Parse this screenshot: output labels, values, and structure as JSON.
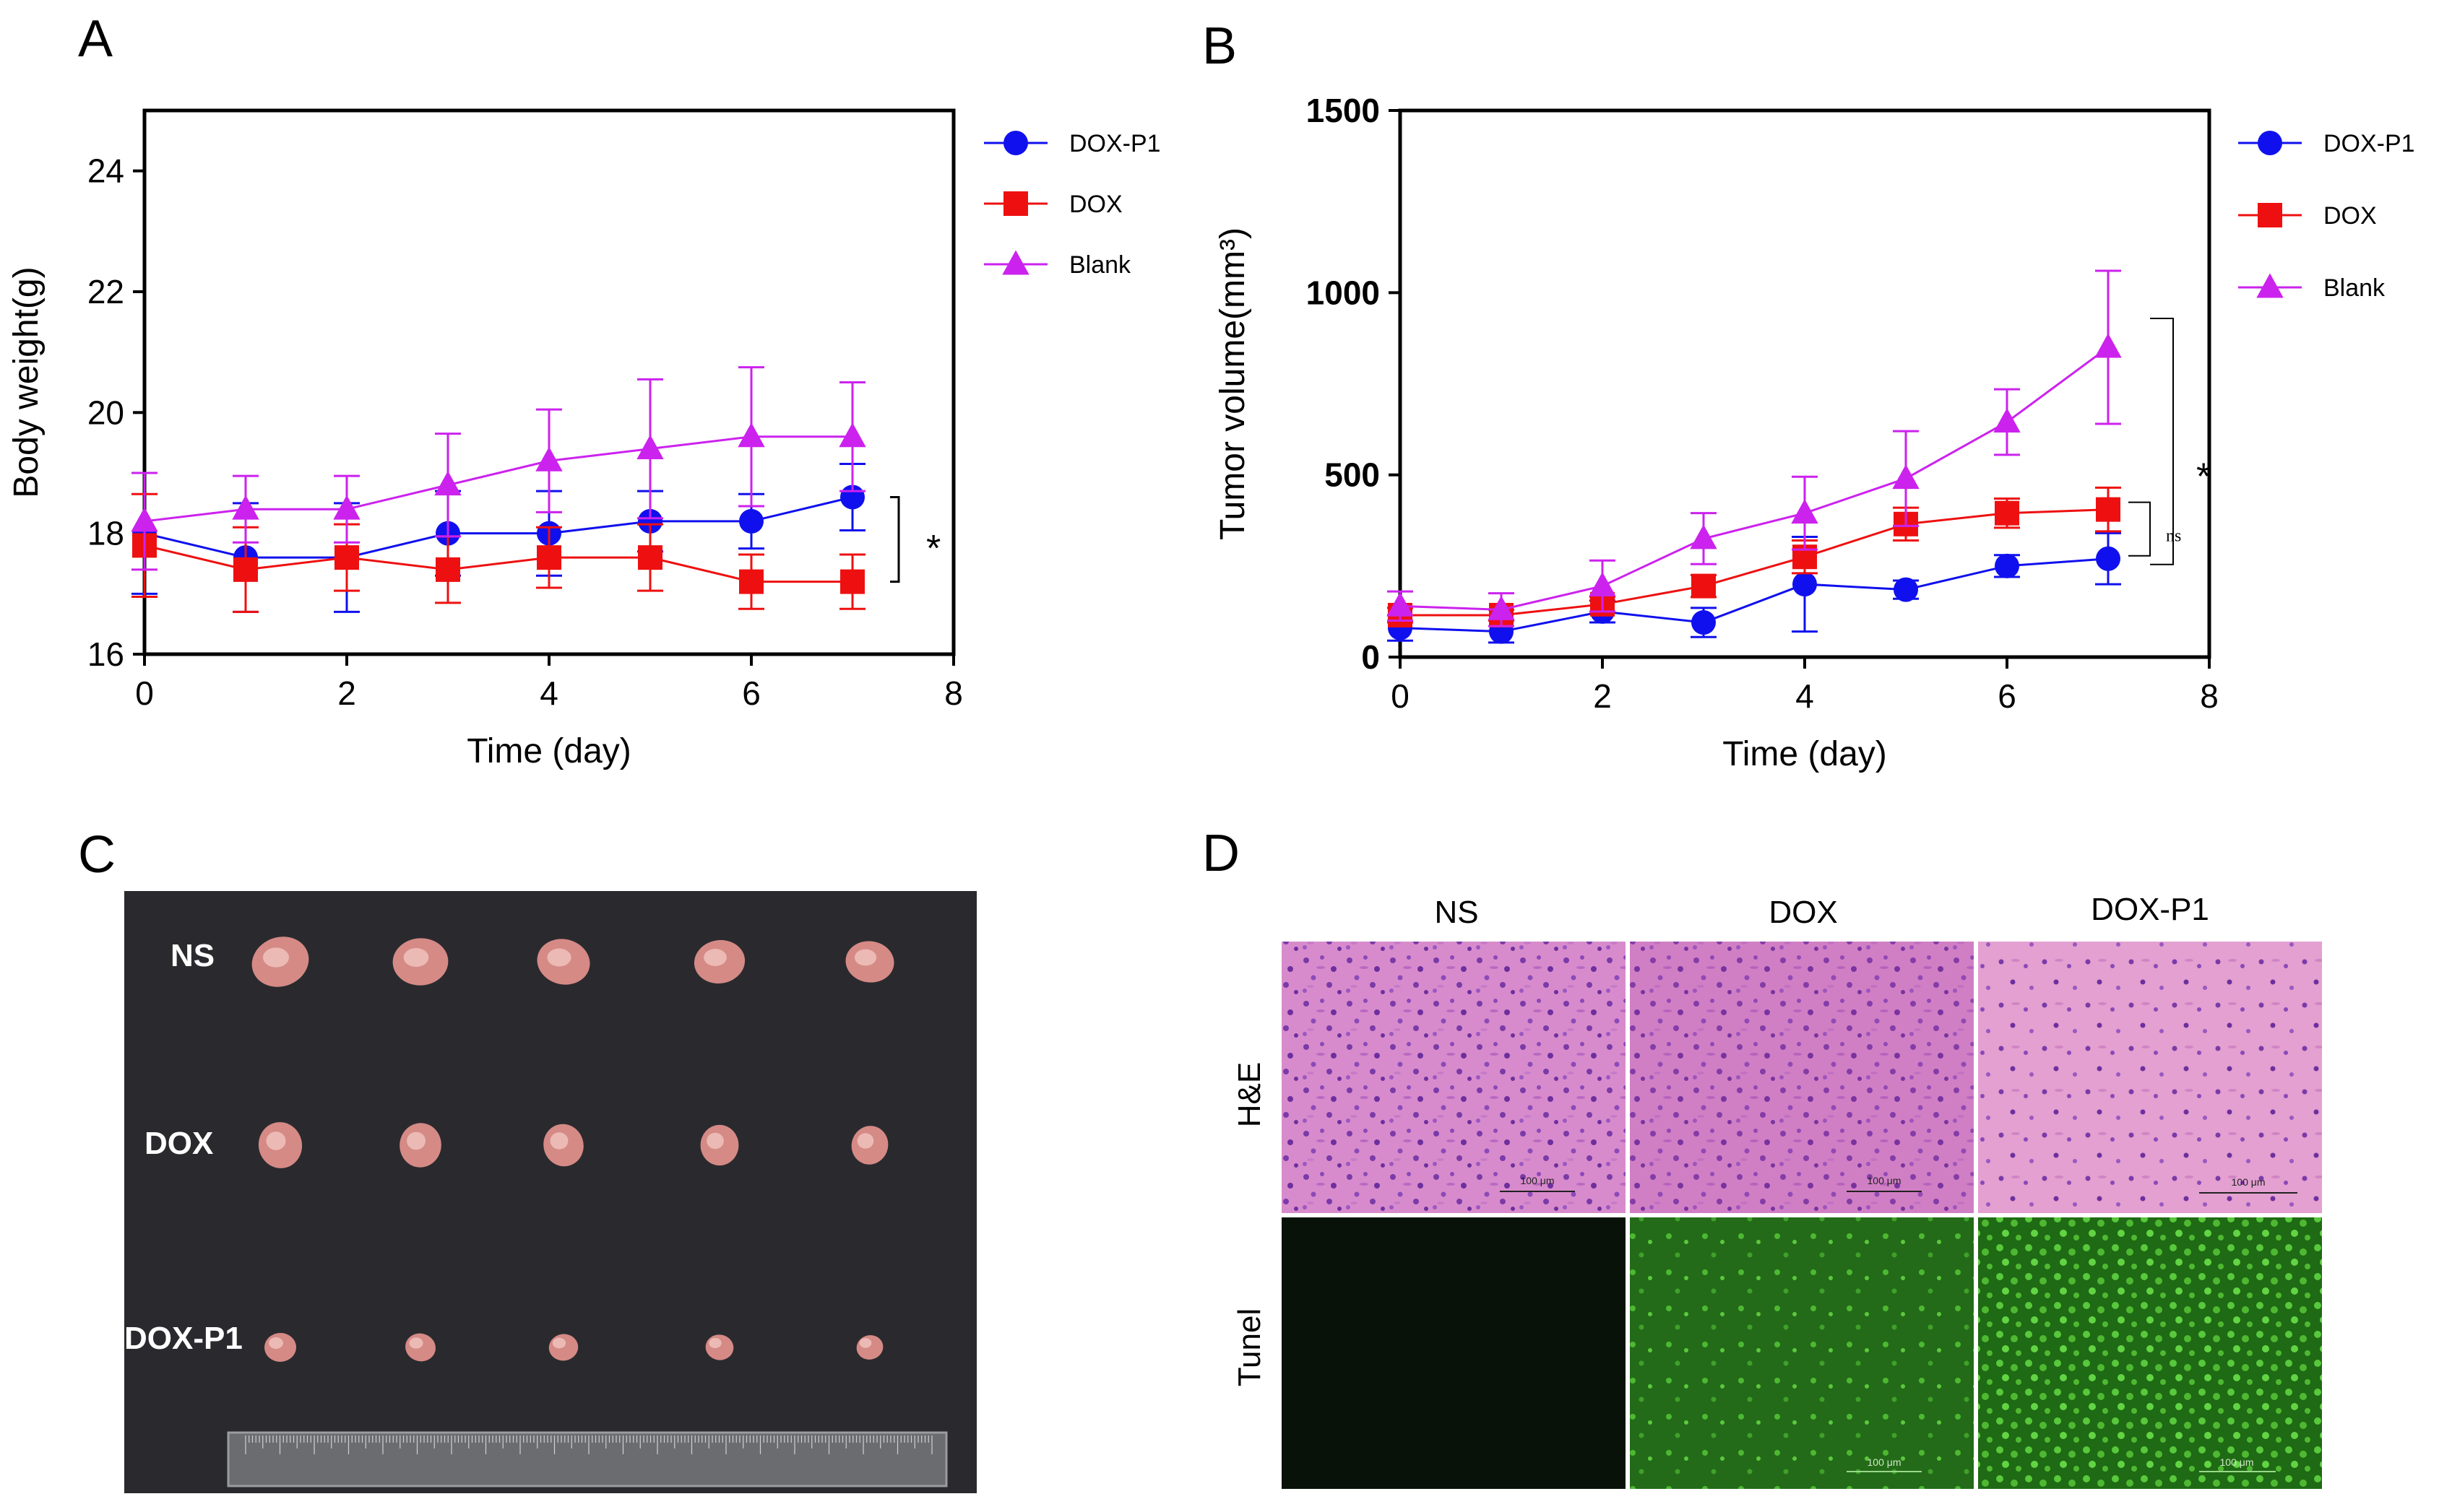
{
  "panels": {
    "A": {
      "letter": "A"
    },
    "B": {
      "letter": "B"
    },
    "C": {
      "letter": "C",
      "row_labels": [
        "NS",
        "DOX",
        "DOX-P1"
      ]
    },
    "D": {
      "letter": "D",
      "column_labels": [
        "NS",
        "DOX",
        "DOX-P1"
      ],
      "row_labels": [
        "H&E",
        "Tunel"
      ],
      "scale_bar_label": "100 μm"
    }
  },
  "colors": {
    "dox_p1": "#1010ee",
    "dox": "#ee1010",
    "blank": "#cc22ee",
    "he_background": "#d98ccd",
    "tunel_dark": "#081208",
    "tunel_green": "#2f9a1e",
    "photo_background": "#2a2a2e"
  },
  "chart_data": [
    {
      "panel": "A",
      "type": "line",
      "xlabel": "Time (day)",
      "ylabel": "Body weight(g)",
      "xlim": [
        0,
        8
      ],
      "ylim": [
        16,
        25
      ],
      "xticks": [
        0,
        2,
        4,
        6,
        8
      ],
      "yticks": [
        16,
        18,
        20,
        22,
        24
      ],
      "x": [
        0,
        1,
        2,
        3,
        4,
        5,
        6,
        7
      ],
      "series": [
        {
          "name": "DOX-P1",
          "marker": "circle",
          "color": "#1010ee",
          "values": [
            18.0,
            17.6,
            17.6,
            18.0,
            18.0,
            18.2,
            18.2,
            18.6
          ],
          "errors": [
            1.0,
            0.9,
            0.9,
            0.7,
            0.7,
            0.5,
            0.45,
            0.55
          ]
        },
        {
          "name": "DOX",
          "marker": "square",
          "color": "#ee1010",
          "values": [
            17.8,
            17.4,
            17.6,
            17.4,
            17.6,
            17.6,
            17.2,
            17.2
          ],
          "errors": [
            0.85,
            0.7,
            0.55,
            0.55,
            0.5,
            0.55,
            0.45,
            0.45
          ]
        },
        {
          "name": "Blank",
          "marker": "triangle",
          "color": "#cc22ee",
          "values": [
            18.2,
            18.4,
            18.4,
            18.8,
            19.2,
            19.4,
            19.6,
            19.6
          ],
          "errors": [
            0.8,
            0.55,
            0.55,
            0.85,
            0.85,
            1.15,
            1.15,
            0.9
          ]
        }
      ],
      "annotations": [
        {
          "text": "*",
          "between": [
            "DOX-P1",
            "DOX"
          ],
          "at_x": 7
        }
      ]
    },
    {
      "panel": "B",
      "type": "line",
      "xlabel": "Time (day)",
      "ylabel": "Tumor volume(mm³)",
      "xlim": [
        0,
        8
      ],
      "ylim": [
        0,
        1500
      ],
      "xticks": [
        0,
        2,
        4,
        6,
        8
      ],
      "yticks": [
        0,
        500,
        1000,
        1500
      ],
      "x": [
        0,
        1,
        2,
        3,
        4,
        5,
        6,
        7
      ],
      "series": [
        {
          "name": "DOX-P1",
          "marker": "circle",
          "color": "#1010ee",
          "values": [
            80,
            70,
            125,
            95,
            200,
            185,
            250,
            270
          ],
          "errors": [
            35,
            30,
            30,
            40,
            130,
            25,
            30,
            70
          ]
        },
        {
          "name": "DOX",
          "marker": "square",
          "color": "#ee1010",
          "values": [
            115,
            115,
            145,
            195,
            275,
            365,
            395,
            405
          ],
          "errors": [
            20,
            15,
            20,
            30,
            45,
            45,
            40,
            60
          ]
        },
        {
          "name": "Blank",
          "marker": "triangle",
          "color": "#cc22ee",
          "values": [
            140,
            130,
            195,
            325,
            395,
            490,
            645,
            850
          ],
          "errors": [
            40,
            45,
            70,
            70,
            100,
            130,
            90,
            210
          ]
        }
      ],
      "annotations": [
        {
          "text": "*",
          "between": [
            "Blank",
            "DOX-P1"
          ],
          "at_x": 7
        },
        {
          "text": "ns",
          "between": [
            "DOX",
            "DOX-P1"
          ],
          "at_x": 7
        }
      ]
    }
  ]
}
